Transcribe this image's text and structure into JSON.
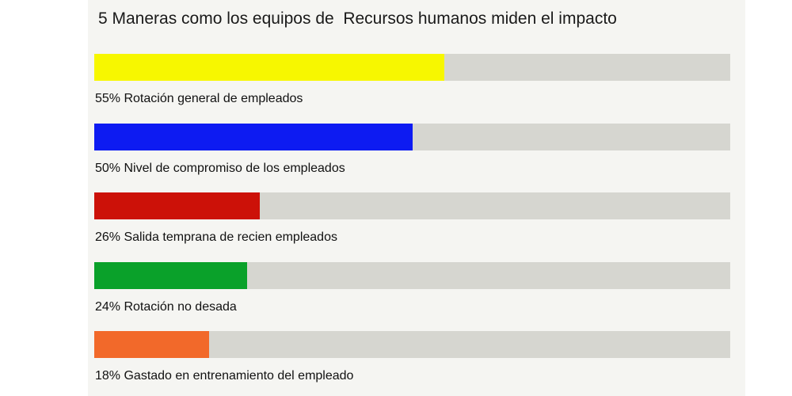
{
  "chart_data": {
    "type": "bar",
    "orientation": "horizontal",
    "title": "5 Maneras como los equipos de  Recursos humanos miden el impacto",
    "xlim": [
      0,
      100
    ],
    "unit": "%",
    "bars": [
      {
        "value": 55,
        "color": "#f7f700",
        "label": "55% Rotación general de empleados"
      },
      {
        "value": 50,
        "color": "#0d1bf2",
        "label": "50% Nivel de compromiso de los empleados"
      },
      {
        "value": 26,
        "color": "#cc1108",
        "label": "26% Salida temprana de recien empleados"
      },
      {
        "value": 24,
        "color": "#0aa12a",
        "label": "24% Rotación no desada"
      },
      {
        "value": 18,
        "color": "#f2692a",
        "label": "18% Gastado en entrenamiento del empleado"
      }
    ],
    "track_color": "#d6d6d0"
  }
}
